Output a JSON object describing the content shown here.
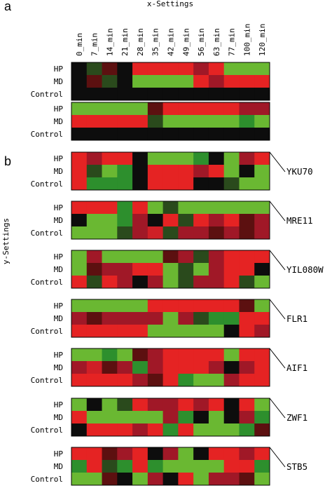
{
  "figure": {
    "panel_a": "a",
    "panel_b": "b",
    "x_axis_title": "x-Settings",
    "y_axis_title": "y-Settings",
    "columns": [
      "0_min",
      "7_min",
      "14_min",
      "21_min",
      "28_min",
      "35_min",
      "42_min",
      "49_min",
      "56_min",
      "63_min",
      "77_min",
      "100_min",
      "120_min"
    ],
    "colors": {
      "R": "#e52323",
      "r": "#cf1f26",
      "m": "#a01827",
      "d": "#5c1010",
      "k": "#0d0d0d",
      "g": "#2a4a1c",
      "n": "#2d8f2d",
      "G": "#6ab832",
      "l": "#7dc02e",
      "y": "#8fc63d"
    }
  },
  "chart_data": {
    "type": "heatmap",
    "x": [
      "0_min",
      "7_min",
      "14_min",
      "21_min",
      "28_min",
      "35_min",
      "42_min",
      "49_min",
      "56_min",
      "63_min",
      "77_min",
      "100_min",
      "120_min"
    ],
    "xlabel": "x-Settings",
    "ylabel": "y-Settings",
    "color_code": "R/r = red (up), m = crimson, d = dark red, k = black, g = dark green, n = medium green, G/l/y = bright green (down)",
    "blocks": [
      {
        "panel": "a",
        "gene": "",
        "rows": [
          "HP",
          "MD",
          "Control"
        ],
        "cells": [
          "kgdkRRRRmRGGG",
          "kdgkGGGGRmRRR",
          "kkkkkkkkkkkkk"
        ]
      },
      {
        "panel": "a",
        "gene": "",
        "rows": [
          "HP",
          "MD",
          "Control"
        ],
        "cells": [
          "GGGGGdRRRRRmm",
          "RRRRRgGGGGGnG",
          "kkkkkkkkkkkkk"
        ]
      },
      {
        "panel": "b",
        "gene": "YKU70",
        "rows": [
          "HP",
          "MD",
          "Control"
        ],
        "cells": [
          "RmRRkGGGnkGmR",
          "RgGnkRRRmRGkG",
          "RnnnkRRRkkgGG"
        ]
      },
      {
        "panel": "b",
        "gene": "MRE11",
        "rows": [
          "HP",
          "MD",
          "Control"
        ],
        "cells": [
          "RRRnRGgGGGGGG",
          "kGGnmkRgRmRdm",
          "GGGgmrgmmdmdm"
        ]
      },
      {
        "panel": "b",
        "gene": "YIL080W",
        "rows": [
          "HP",
          "MD",
          "Control"
        ],
        "cells": [
          "GmGGGGdmgmRRR",
          "GdmmRRGgGmRRk",
          "RgRmkmGgmmRgG"
        ]
      },
      {
        "panel": "b",
        "gene": "FLR1",
        "rows": [
          "HP",
          "MD",
          "Control"
        ],
        "cells": [
          "GGGGGRRRRRRdG",
          "mdmmmmGmgnnRR",
          "RRRRRGGGGGkRm"
        ]
      },
      {
        "panel": "b",
        "gene": "AIF1",
        "rows": [
          "HP",
          "MD",
          "Control"
        ],
        "cells": [
          "GGnGdmRRRRGRR",
          "mrdmnmRRRmkmR",
          "RRRRmdRnGGmRR"
        ]
      },
      {
        "panel": "b",
        "gene": "ZWF1",
        "rows": [
          "HP",
          "MD",
          "Control"
        ],
        "cells": [
          "GkGgRmmRmRkRG",
          "RGGGGGmnkGkmn",
          "kRRRmRnRGGGnd"
        ]
      },
      {
        "panel": "b",
        "gene": "STB5",
        "rows": [
          "HP",
          "MD",
          "Control"
        ],
        "cells": [
          "RRdmRkmGkRRmR",
          "nRgnRnGGGGRRn",
          "GGdkGmkRGmmdG"
        ]
      }
    ]
  }
}
